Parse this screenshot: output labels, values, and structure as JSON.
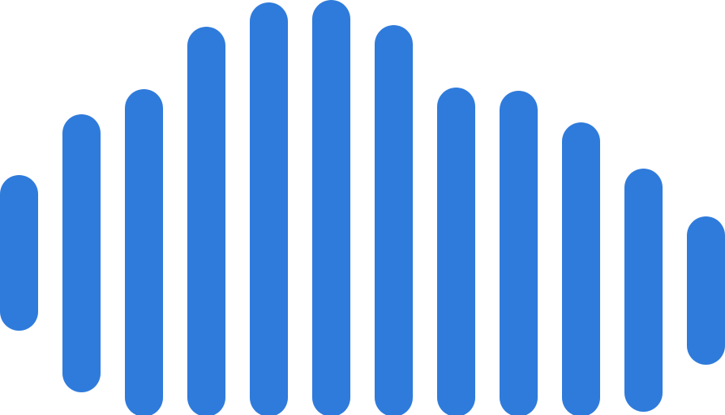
{
  "logo": {
    "icon": "audio-waveform-icon",
    "bar_color": "#2f7bdb",
    "background": "#ffffff"
  }
}
